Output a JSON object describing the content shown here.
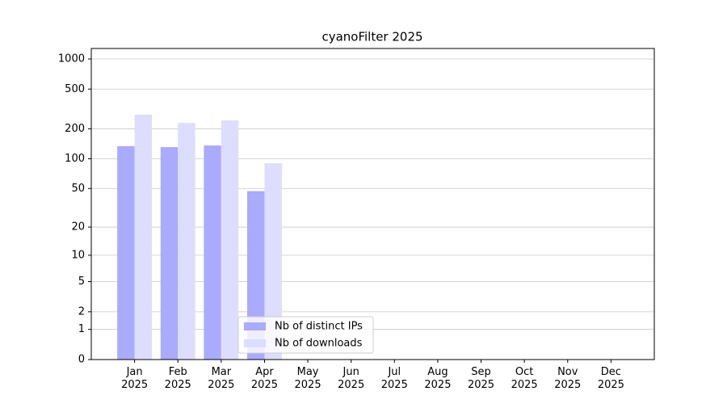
{
  "chart_data": {
    "type": "bar",
    "title": "cyanoFilter 2025",
    "categories": [
      "Jan\n2025",
      "Feb\n2025",
      "Mar\n2025",
      "Apr\n2025",
      "May\n2025",
      "Jun\n2025",
      "Jul\n2025",
      "Aug\n2025",
      "Sep\n2025",
      "Oct\n2025",
      "Nov\n2025",
      "Dec\n2025"
    ],
    "series": [
      {
        "name": "Nb of distinct IPs",
        "color": "#aaaaff",
        "values": [
          134,
          131,
          136,
          47,
          null,
          null,
          null,
          null,
          null,
          null,
          null,
          null
        ]
      },
      {
        "name": "Nb of downloads",
        "color": "#ddddff",
        "values": [
          277,
          229,
          243,
          90,
          null,
          null,
          null,
          null,
          null,
          null,
          null,
          null
        ]
      }
    ],
    "yscale": "log1p",
    "ylim": [
      0,
      1273
    ],
    "yticks": [
      0,
      1,
      2,
      5,
      10,
      20,
      50,
      100,
      200,
      500,
      1000
    ],
    "grid": true,
    "legend": "lower center"
  }
}
